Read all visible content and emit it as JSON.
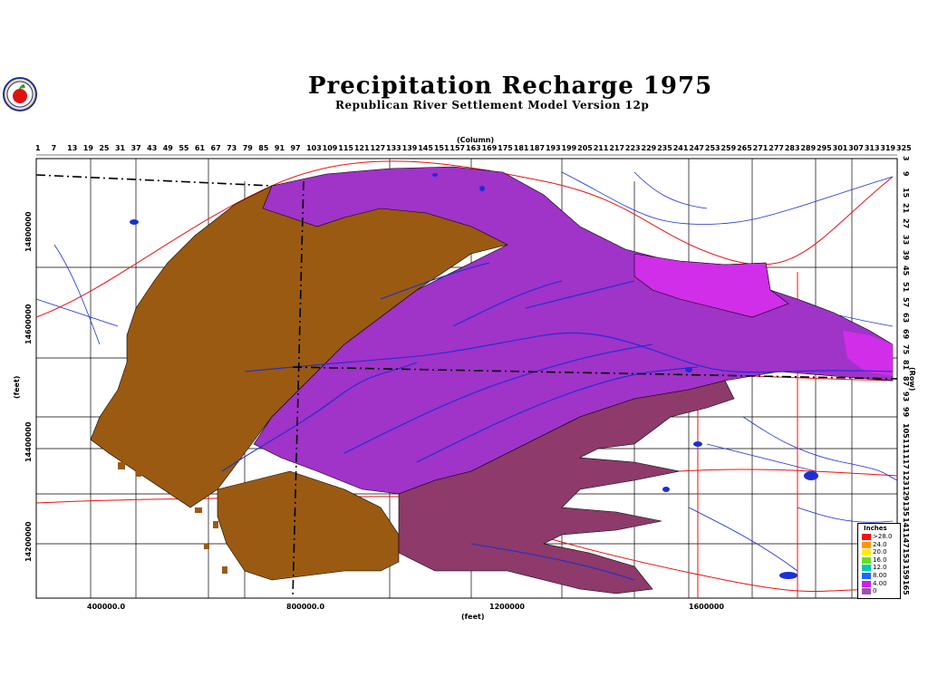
{
  "title": "Precipitation Recharge 1975",
  "subtitle": "Republican River Settlement Model Version 12p",
  "column_axis_title": "(Column)",
  "row_axis_title": "(Row)",
  "y_axis_title": "(feet)",
  "x_axis_title": "(feet)",
  "column_ticks": [
    "1",
    "7",
    "13",
    "19",
    "25",
    "31",
    "37",
    "43",
    "49",
    "55",
    "61",
    "67",
    "73",
    "79",
    "85",
    "91",
    "97",
    "103",
    "109",
    "115",
    "121",
    "127",
    "133",
    "139",
    "145",
    "151",
    "157",
    "163",
    "169",
    "175",
    "181",
    "187",
    "193",
    "199",
    "205",
    "211",
    "217",
    "223",
    "229",
    "235",
    "241",
    "247",
    "253",
    "259",
    "265",
    "271",
    "277",
    "283",
    "289",
    "295",
    "301",
    "307",
    "313",
    "319",
    "325"
  ],
  "row_ticks": [
    "3",
    "9",
    "15",
    "21",
    "27",
    "33",
    "39",
    "45",
    "51",
    "57",
    "63",
    "69",
    "75",
    "81",
    "87",
    "93",
    "99",
    "105",
    "111",
    "117",
    "123",
    "129",
    "135",
    "141",
    "147",
    "153",
    "159",
    "165"
  ],
  "y_ticks": [
    "14800000",
    "14600000",
    "14400000",
    "14200000"
  ],
  "x_ticks": [
    "400000.0",
    "800000.0",
    "1200000",
    "1600000"
  ],
  "legend": {
    "title": "Inches",
    "items": [
      {
        "label": ">28.0",
        "color": "#ff1010"
      },
      {
        "label": "24.0",
        "color": "#ff9900"
      },
      {
        "label": "20.0",
        "color": "#ffee00"
      },
      {
        "label": "16.0",
        "color": "#66dd22"
      },
      {
        "label": "12.0",
        "color": "#00ccaa"
      },
      {
        "label": "8.00",
        "color": "#2266ff"
      },
      {
        "label": "4.00",
        "color": "#cc22ee"
      },
      {
        "label": "0",
        "color": "#9955aa"
      }
    ]
  },
  "colors": {
    "brown": "#9b5a12",
    "purple": "#a033c8",
    "magenta": "#d02ee8",
    "plum": "#8e3a6a",
    "road": "#ee1111",
    "river": "#1a2fd6"
  },
  "logo": {
    "icon": "apple-icon"
  }
}
